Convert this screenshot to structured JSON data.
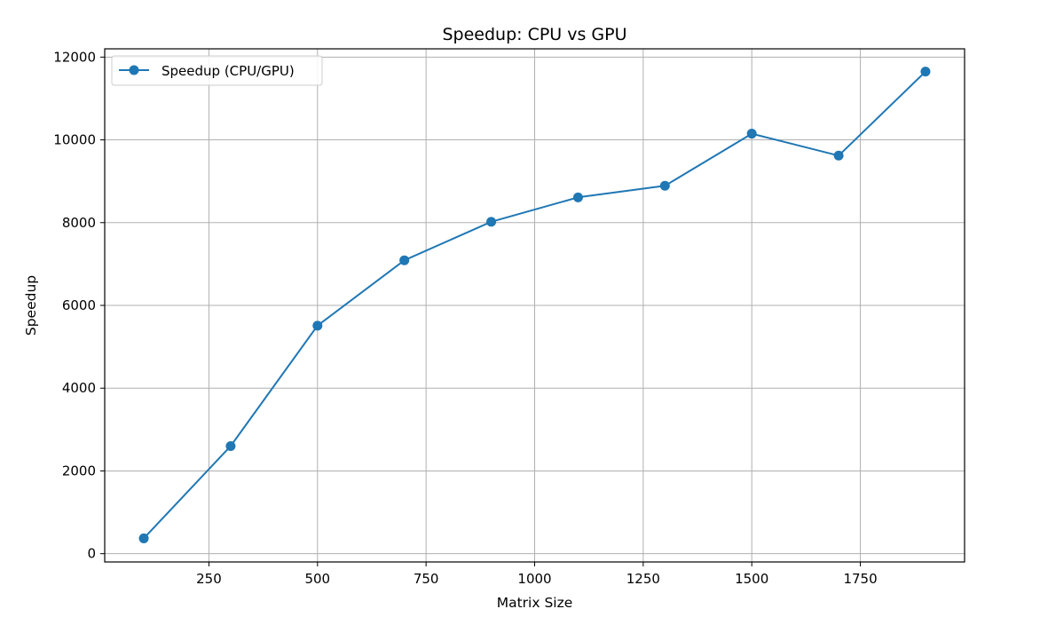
{
  "chart_data": {
    "type": "line",
    "title": "Speedup: CPU vs GPU",
    "xlabel": "Matrix Size",
    "ylabel": "Speedup",
    "xlim": [
      10,
      1990
    ],
    "ylim": [
      -200,
      12200
    ],
    "xticks": [
      250,
      500,
      750,
      1000,
      1250,
      1500,
      1750
    ],
    "yticks": [
      0,
      2000,
      4000,
      6000,
      8000,
      10000,
      12000
    ],
    "grid": true,
    "legend_position": "top-left",
    "series": [
      {
        "name": "Speedup (CPU/GPU)",
        "color": "#1f77b4",
        "marker": "circle",
        "x": [
          100,
          300,
          500,
          700,
          900,
          1100,
          1300,
          1500,
          1700,
          1900
        ],
        "y": [
          370,
          2600,
          5510,
          7090,
          8020,
          8610,
          8890,
          10150,
          9620,
          11650
        ]
      }
    ]
  }
}
